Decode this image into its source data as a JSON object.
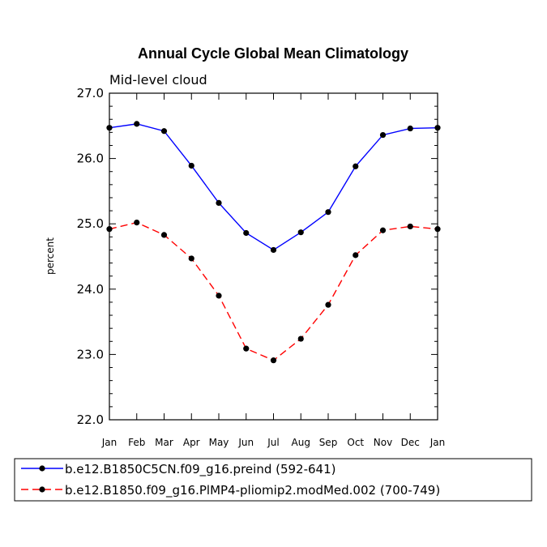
{
  "chart_data": {
    "type": "line",
    "title": "Annual Cycle Global Mean Climatology",
    "subtitle": "Mid-level cloud",
    "xlabel": "",
    "ylabel": "percent",
    "categories": [
      "Jan",
      "Feb",
      "Mar",
      "Apr",
      "May",
      "Jun",
      "Jul",
      "Aug",
      "Sep",
      "Oct",
      "Nov",
      "Dec",
      "Jan"
    ],
    "ylim": [
      22.0,
      27.0
    ],
    "yticks": [
      "22.0",
      "23.0",
      "24.0",
      "25.0",
      "26.0",
      "27.0"
    ],
    "series": [
      {
        "name": "b.e12.B1850C5CN.f09_g16.preind (592-641)",
        "color": "#0000ff",
        "dash": "solid",
        "values": [
          26.47,
          26.53,
          26.42,
          25.89,
          25.32,
          24.86,
          24.6,
          24.87,
          25.18,
          25.88,
          26.36,
          26.46,
          26.47
        ]
      },
      {
        "name": "b.e12.B1850.f09_g16.PlMP4-pliomip2.modMed.002 (700-749)",
        "color": "#ff0000",
        "dash": "dashed",
        "values": [
          24.92,
          25.02,
          24.83,
          24.47,
          23.9,
          23.09,
          22.91,
          23.24,
          23.76,
          24.52,
          24.9,
          24.96,
          24.92
        ]
      }
    ],
    "legend_position": "bottom"
  }
}
